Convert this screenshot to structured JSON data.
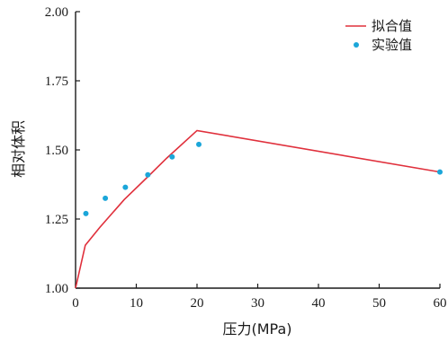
{
  "chart_data": {
    "type": "line",
    "xlabel": "压力(MPa)",
    "ylabel": "相对体积",
    "xlim": [
      0,
      60
    ],
    "ylim": [
      1.0,
      2.0
    ],
    "x_ticks": [
      "0",
      "10",
      "20",
      "30",
      "40",
      "50",
      "60"
    ],
    "y_ticks": [
      "1.00",
      "1.25",
      "1.50",
      "1.75",
      "2.00"
    ],
    "grid": false,
    "legend_position": "top-right",
    "series": [
      {
        "name": "拟合值",
        "kind": "line",
        "color": "#e0303c",
        "x": [
          0,
          1.6,
          4,
          8,
          12,
          15,
          20,
          60
        ],
        "y": [
          1.0,
          1.155,
          1.22,
          1.32,
          1.405,
          1.47,
          1.57,
          1.42
        ]
      },
      {
        "name": "实验值",
        "kind": "scatter",
        "color": "#1ba6d9",
        "x": [
          1.7,
          4.9,
          8.2,
          11.9,
          15.9,
          20.3,
          60
        ],
        "y": [
          1.27,
          1.325,
          1.365,
          1.41,
          1.475,
          1.52,
          1.42
        ]
      }
    ]
  }
}
